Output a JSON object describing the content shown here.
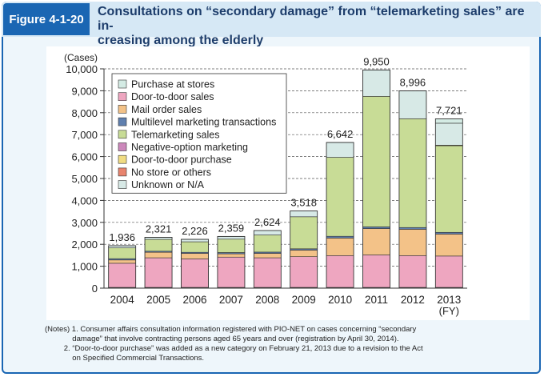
{
  "figure_label": "Figure 4-1-20",
  "title": "Consultations on “secondary damage” from “telemarketing sales” are in-creasing among the elderly",
  "title_line1": "Consultations on “secondary damage” from “telemarketing sales” are in-",
  "title_line2": "creasing among the elderly",
  "chart_data": {
    "type": "bar",
    "stacked": true,
    "ylabel": "(Cases)",
    "xlabel": "(FY)",
    "ylim": [
      0,
      10000
    ],
    "yticks": [
      "0",
      "1,000",
      "2,000",
      "3,000",
      "4,000",
      "5,000",
      "6,000",
      "7,000",
      "8,000",
      "9,000",
      "10,000"
    ],
    "categories": [
      "2004",
      "2005",
      "2006",
      "2007",
      "2008",
      "2009",
      "2010",
      "2011",
      "2012",
      "2013"
    ],
    "totals": [
      1936,
      2321,
      2226,
      2359,
      2624,
      3518,
      6642,
      9950,
      8996,
      7721
    ],
    "total_labels": [
      "1,936",
      "2,321",
      "2,226",
      "2,359",
      "2,624",
      "3,518",
      "6,642",
      "9,950",
      "8,996",
      "7,721"
    ],
    "series": [
      {
        "name": "No store or others",
        "color": "#e8846e",
        "values": [
          20,
          20,
          20,
          20,
          20,
          20,
          20,
          20,
          20,
          20
        ]
      },
      {
        "name": "Negative-option marketing",
        "color": "#cc88bb",
        "values": [
          15,
          15,
          15,
          15,
          15,
          15,
          15,
          15,
          15,
          15
        ]
      },
      {
        "name": "Door-to-door sales",
        "color": "#eea6c0",
        "values": [
          1100,
          1350,
          1300,
          1380,
          1350,
          1400,
          1450,
          1480,
          1450,
          1430
        ]
      },
      {
        "name": "Mail order sales",
        "color": "#f3c288",
        "values": [
          150,
          250,
          250,
          150,
          200,
          300,
          800,
          1200,
          1200,
          1000
        ]
      },
      {
        "name": "Multilevel marketing transactions",
        "color": "#5f7fae",
        "values": [
          60,
          50,
          50,
          60,
          60,
          60,
          80,
          80,
          80,
          80
        ]
      },
      {
        "name": "Telemarketing sales",
        "color": "#c8dc96",
        "values": [
          490,
          540,
          480,
          610,
          780,
          1460,
          3600,
          5950,
          4960,
          3950
        ]
      },
      {
        "name": "Door-to-door purchase",
        "color": "#f0dc82",
        "values": [
          0,
          0,
          0,
          0,
          0,
          0,
          0,
          0,
          0,
          26
        ]
      },
      {
        "name": "Unknown or N/A",
        "color": "#d7e9e6",
        "values": [
          100,
          95,
          110,
          123,
          198,
          262,
          676,
          1204,
          1270,
          1000
        ]
      },
      {
        "name": "Purchase at stores",
        "color": "#d4ebe4",
        "values": [
          1,
          1,
          1,
          1,
          1,
          1,
          1,
          1,
          1,
          200
        ]
      }
    ],
    "legend": {
      "placement": "top-left",
      "entries": [
        {
          "name": "Purchase at stores",
          "color": "#d4ebe4"
        },
        {
          "name": "Door-to-door sales",
          "color": "#eea6c0"
        },
        {
          "name": "Mail order sales",
          "color": "#f3c288"
        },
        {
          "name": "Multilevel marketing transactions",
          "color": "#5f7fae"
        },
        {
          "name": "Telemarketing sales",
          "color": "#c8dc96"
        },
        {
          "name": "Negative-option marketing",
          "color": "#cc88bb"
        },
        {
          "name": "Door-to-door purchase",
          "color": "#f0dc82"
        },
        {
          "name": "No store or others",
          "color": "#e8846e"
        },
        {
          "name": "Unknown or N/A",
          "color": "#d7e9e6"
        }
      ]
    },
    "grid": "dashed-horizontal"
  },
  "notes": [
    "(Notes) 1. Consumer affairs consultation information registered with PIO-NET on cases concerning “secondary",
    "             damage” that involve contracting persons aged 65 years and over (registration by April 30, 2014).",
    "         2. “Door-to-door purchase” was added as a new category on February 21, 2013 due to a revision to the Act",
    "             on Specified Commercial Transactions."
  ]
}
